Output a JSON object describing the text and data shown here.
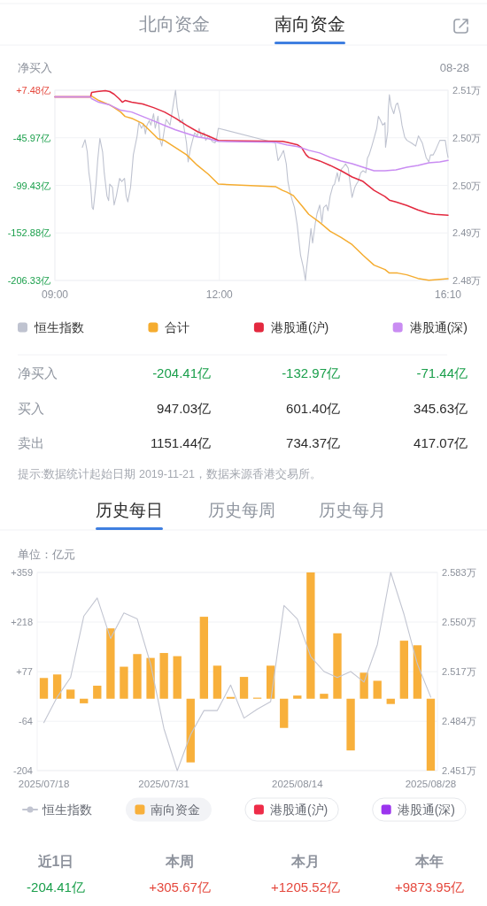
{
  "chart_data": [
    {
      "type": "other",
      "annotations": [
        "北向资金",
        "南向资金"
      ]
    },
    {
      "type": "line",
      "title": "净买入",
      "subtitle": "08-28",
      "xlim": [
        9,
        16.17
      ],
      "xticks": [
        {
          "value": 9,
          "label": "09:00"
        },
        {
          "value": 12,
          "label": "12:00"
        },
        {
          "value": 16.17,
          "label": "16:10"
        }
      ],
      "ylim": [
        -206.33,
        7.48
      ],
      "yticks": [
        {
          "value": 7.48,
          "label": "+7.48亿"
        },
        {
          "value": -45.97,
          "label": "-45.97亿"
        },
        {
          "value": -99.43,
          "label": "-99.43亿"
        },
        {
          "value": -152.88,
          "label": "-152.88亿"
        },
        {
          "value": -206.33,
          "label": "-206.33亿"
        }
      ],
      "y2lim": [
        2.4805,
        2.5105
      ],
      "y2ticks": [
        {
          "value": 2.5105,
          "label": "2.51万"
        },
        {
          "value": 2.503,
          "label": "2.50万"
        },
        {
          "value": 2.4955,
          "label": "2.50万"
        },
        {
          "value": 2.488,
          "label": "2.49万"
        },
        {
          "value": 2.4805,
          "label": "2.48万"
        }
      ],
      "grid": true,
      "legend": "bottom",
      "series": [
        {
          "name": "恒生指数",
          "color": "#bfc3d0",
          "axis": "y2",
          "x": [
            9.5,
            9.55,
            9.59,
            9.62,
            9.65,
            9.68,
            9.7,
            9.75,
            9.78,
            9.82,
            9.87,
            9.9,
            9.95,
            9.98,
            10,
            10.05,
            10.08,
            10.12,
            10.18,
            10.22,
            10.27,
            10.3,
            10.33,
            10.38,
            10.43,
            10.5,
            10.53,
            10.58,
            10.62,
            10.65,
            10.68,
            10.72,
            10.75,
            10.8,
            10.83,
            10.88,
            10.92,
            10.95,
            11,
            11.03,
            11.1,
            11.15,
            11.2,
            11.23,
            11.28,
            11.33,
            11.4,
            11.43,
            11.47,
            11.52,
            11.55,
            11.6,
            11.63,
            11.67,
            11.72,
            11.75,
            11.8,
            11.83,
            11.87,
            11.92,
            11.95,
            11.98,
            13.02,
            13.07,
            13.13,
            13.17,
            13.22,
            13.25,
            13.28,
            13.33,
            13.37,
            13.42,
            13.45,
            13.48,
            13.53,
            13.57,
            13.58,
            13.63,
            13.67,
            13.7,
            13.75,
            13.78,
            13.83,
            13.87,
            13.9,
            13.95,
            13.98,
            14.02,
            14.07,
            14.1,
            14.15,
            14.18,
            14.22,
            14.27,
            14.3,
            14.35,
            14.38,
            14.42,
            14.47,
            14.5,
            14.53,
            14.58,
            14.62,
            14.67,
            14.7,
            14.73,
            14.78,
            14.82,
            14.87,
            14.9,
            14.93,
            14.98,
            15.02,
            15.03,
            15.07,
            15.08,
            15.1,
            15.13,
            15.18,
            15.22,
            15.25,
            15.3,
            15.33,
            15.38,
            15.42,
            15.5,
            15.58,
            15.63,
            15.7,
            15.77,
            15.82,
            15.85,
            15.9,
            15.95,
            16.02,
            16.12,
            16.15,
            16.17
          ],
          "values": [
            2.5015,
            2.5027,
            2.5008,
            2.4975,
            2.4957,
            2.492,
            2.4917,
            2.4957,
            2.4994,
            2.5029,
            2.5008,
            2.4975,
            2.4938,
            2.4931,
            2.4957,
            2.4952,
            2.4924,
            2.4938,
            2.4966,
            2.4961,
            2.4966,
            2.4938,
            2.4929,
            2.4952,
            2.5003,
            2.5033,
            2.5054,
            2.5045,
            2.5052,
            2.5036,
            2.505,
            2.5057,
            2.505,
            2.5068,
            2.5045,
            2.5064,
            2.5026,
            2.5017,
            2.5045,
            2.5059,
            2.505,
            2.5078,
            2.5105,
            2.5078,
            2.5054,
            2.5059,
            2.5022,
            2.4992,
            2.5012,
            2.5029,
            2.5038,
            2.5033,
            2.5045,
            2.5031,
            2.5038,
            2.5026,
            2.5033,
            2.5029,
            2.5024,
            2.5022,
            2.5029,
            2.5045,
            2.5022,
            2.4994,
            2.5003,
            2.501,
            2.4989,
            2.4961,
            2.4947,
            2.4931,
            2.492,
            2.4892,
            2.4868,
            2.4845,
            2.4826,
            2.4805,
            2.4817,
            2.4854,
            2.4887,
            2.4864,
            2.4896,
            2.491,
            2.4924,
            2.4896,
            2.492,
            2.4924,
            2.4915,
            2.4938,
            2.4954,
            2.4957,
            2.4975,
            2.4961,
            2.498,
            2.4985,
            2.4989,
            2.4982,
            2.4961,
            2.4936,
            2.4952,
            2.4957,
            2.4961,
            2.4975,
            2.4978,
            2.4975,
            2.4998,
            2.5003,
            2.5017,
            2.5029,
            2.5045,
            2.5064,
            2.5059,
            2.505,
            2.5054,
            2.5015,
            2.504,
            2.5073,
            2.5098,
            2.508,
            2.5068,
            2.5082,
            2.5085,
            2.5068,
            2.505,
            2.5031,
            2.5026,
            2.5022,
            2.5017,
            2.5033,
            2.5022,
            2.4999,
            2.4992,
            2.5003,
            2.5003,
            2.5012,
            2.5026,
            2.5026,
            2.5008,
            2.4999
          ]
        },
        {
          "name": "合计",
          "color": "#f5ac2f",
          "x": [
            9,
            9.65,
            9.67,
            9.8,
            10,
            10.08,
            10.2,
            10.28,
            10.4,
            10.6,
            10.8,
            10.88,
            11,
            11.2,
            11.4,
            11.6,
            11.8,
            11.98,
            13.03,
            13.15,
            13.23,
            13.35,
            13.5,
            13.63,
            13.83,
            14.02,
            14.22,
            14.42,
            14.62,
            14.82,
            15.02,
            15.1,
            15.25,
            15.42,
            15.62,
            15.82,
            16.02,
            16.17
          ],
          "values": [
            0,
            0,
            1,
            -4,
            -9,
            -12,
            -17,
            -22,
            -24,
            -30,
            -42,
            -47,
            -49,
            -57,
            -65,
            -77,
            -87,
            -98,
            -101,
            -105,
            -107,
            -111,
            -122,
            -132,
            -141,
            -151,
            -158,
            -166,
            -178,
            -189,
            -194,
            -198,
            -198,
            -200,
            -204,
            -206,
            -205,
            -204.41
          ]
        },
        {
          "name": "港股通(沪)",
          "color": "#e3293f",
          "x": [
            9,
            9.65,
            9.67,
            9.77,
            9.92,
            10,
            10.08,
            10.17,
            10.23,
            10.28,
            10.4,
            10.6,
            10.8,
            11,
            11.2,
            11.4,
            11.6,
            11.8,
            11.98,
            13.15,
            13.23,
            13.43,
            13.5,
            13.58,
            13.63,
            13.83,
            14.02,
            14.22,
            14.42,
            14.62,
            14.82,
            15.02,
            15.1,
            15.22,
            15.42,
            15.62,
            15.82,
            15.93,
            16.17
          ],
          "values": [
            0,
            0,
            5,
            6,
            7,
            6,
            3,
            -2,
            -6,
            -4,
            -6,
            -8,
            -12,
            -17,
            -24,
            -32,
            -39,
            -44,
            -49,
            -50,
            -51,
            -54,
            -57,
            -65,
            -68,
            -72,
            -77,
            -83,
            -90,
            -95,
            -105,
            -112,
            -116,
            -118,
            -122,
            -127,
            -131,
            -132,
            -132.97
          ]
        },
        {
          "name": "港股通(深)",
          "color": "#c98cf2",
          "x": [
            9,
            9.65,
            9.67,
            9.8,
            10,
            10.2,
            10.4,
            10.6,
            10.8,
            11,
            11.2,
            11.4,
            11.6,
            11.8,
            11.98,
            13.03,
            13.23,
            13.43,
            13.63,
            13.83,
            14.02,
            14.22,
            14.42,
            14.62,
            14.82,
            15.02,
            15.22,
            15.42,
            15.62,
            15.82,
            16.02,
            16.17
          ],
          "values": [
            0,
            0,
            -2,
            -6,
            -9,
            -15,
            -17,
            -22,
            -27,
            -32,
            -37,
            -41,
            -45,
            -47,
            -50,
            -51,
            -54,
            -56,
            -60,
            -63,
            -68,
            -72,
            -75,
            -79,
            -83,
            -83,
            -82,
            -79,
            -77,
            -74,
            -73,
            -71.44
          ]
        }
      ]
    },
    {
      "type": "other",
      "annotations": [
        "净买入",
        "-204.41亿",
        "-132.97亿",
        "-71.44亿",
        "买入",
        "947.03亿",
        "601.40亿",
        "345.63亿",
        "卖出",
        "1151.44亿",
        "734.37亿",
        "417.07亿",
        "提示:数据统计起始日期 2019-11-21，数据来源香港交易所。"
      ]
    },
    {
      "type": "other",
      "annotations": [
        "历史每日",
        "历史每周",
        "历史每月"
      ]
    },
    {
      "type": "bar",
      "ylabel": "单位：亿元",
      "categories": [
        "2025/07/18",
        null,
        null,
        null,
        null,
        null,
        null,
        null,
        null,
        "2025/07/31",
        null,
        null,
        null,
        null,
        null,
        null,
        null,
        null,
        null,
        "2025/08/14",
        null,
        null,
        null,
        null,
        null,
        null,
        null,
        null,
        null,
        "2025/08/28"
      ],
      "ylim": [
        -204.41,
        359
      ],
      "yticks": [
        {
          "value": 359,
          "label": "+359"
        },
        {
          "value": 218,
          "label": "+218"
        },
        {
          "value": 77,
          "label": "+77"
        },
        -64,
        -204
      ],
      "y2lim": [
        2.451,
        2.583
      ],
      "y2ticks": [
        {
          "value": 2.583,
          "label": "2.583万"
        },
        {
          "value": 2.55,
          "label": "2.550万"
        },
        {
          "value": 2.517,
          "label": "2.517万"
        },
        {
          "value": 2.484,
          "label": "2.484万"
        },
        {
          "value": 2.451,
          "label": "2.451万"
        }
      ],
      "grid": "y",
      "legend": "bottom",
      "series": [
        {
          "name": "恒生指数",
          "type": "line",
          "axis": "y2",
          "color": "#c2c5d1",
          "values": [
            2.483,
            2.5,
            2.513,
            2.554,
            2.566,
            2.539,
            2.556,
            2.552,
            2.522,
            2.479,
            2.451,
            2.475,
            2.491,
            2.491,
            2.508,
            2.486,
            2.492,
            2.497,
            2.561,
            2.552,
            2.527,
            2.517,
            2.513,
            2.517,
            2.51,
            2.535,
            2.583,
            2.555,
            2.522,
            2.5
          ]
        },
        {
          "name": "南向资金",
          "color": "#f8b03b",
          "values": [
            59,
            69,
            26,
            -13,
            37,
            200,
            91,
            127,
            116,
            130,
            121,
            -181,
            233,
            94,
            5,
            62,
            3,
            94,
            -83,
            9,
            359,
            14,
            186,
            -147,
            74,
            51,
            -15,
            165,
            152,
            -204.41
          ]
        },
        {
          "name": "港股通(沪)",
          "color": "#ee2c48",
          "values": [
            null,
            null,
            null,
            null,
            null,
            null,
            null,
            null,
            null,
            null,
            null,
            null,
            null,
            null,
            null,
            null,
            null,
            null,
            null,
            null,
            null,
            null,
            null,
            null,
            null,
            null,
            null,
            null,
            null,
            null
          ]
        },
        {
          "name": "港股通(深)",
          "color": "#9b34ee",
          "values": [
            null,
            null,
            null,
            null,
            null,
            null,
            null,
            null,
            null,
            null,
            null,
            null,
            null,
            null,
            null,
            null,
            null,
            null,
            null,
            null,
            null,
            null,
            null,
            null,
            null,
            null,
            null,
            null,
            null,
            null
          ]
        }
      ]
    },
    {
      "type": "other",
      "annotations": [
        "近1日",
        "本周",
        "本月",
        "本年",
        "-204.41亿",
        "+305.67亿",
        "+1205.52亿",
        "+9873.95亿"
      ]
    }
  ]
}
